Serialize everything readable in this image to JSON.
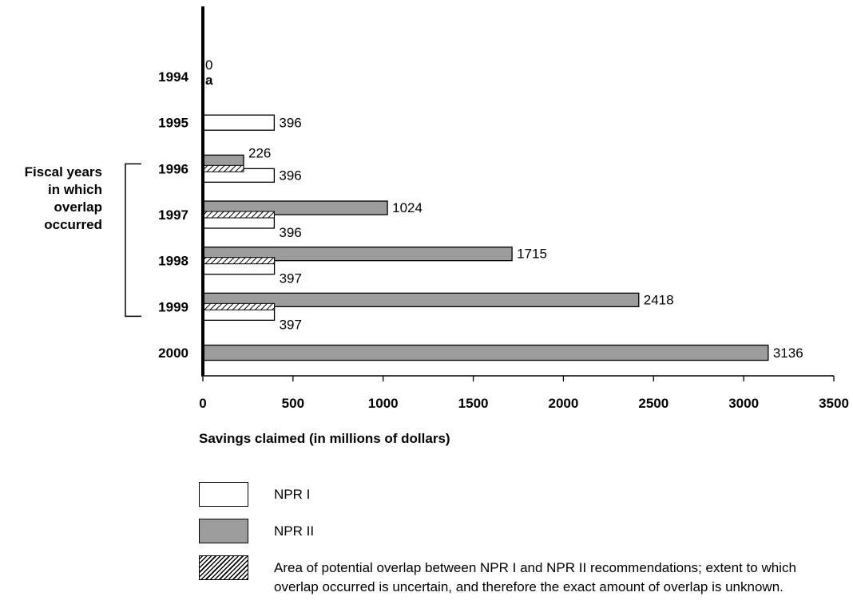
{
  "chart_data": {
    "type": "bar",
    "orientation": "horizontal",
    "categories": [
      "1994",
      "1995",
      "1996",
      "1997",
      "1998",
      "1999",
      "2000"
    ],
    "series": [
      {
        "name": "NPR I",
        "values": [
          0,
          396,
          396,
          396,
          397,
          397,
          null
        ],
        "color": "#ffffff"
      },
      {
        "name": "NPR II",
        "values": [
          null,
          null,
          226,
          1024,
          1715,
          2418,
          3136
        ],
        "color": "#9c9c9c"
      }
    ],
    "overlap_values": [
      null,
      null,
      226,
      396,
      397,
      397,
      null
    ],
    "value_labels": {
      "1994": [
        "0",
        "a"
      ],
      "1995": [
        "396"
      ],
      "1996": [
        "226",
        "396"
      ],
      "1997": [
        "1024",
        "396"
      ],
      "1998": [
        "1715",
        "397"
      ],
      "1999": [
        "2418",
        "397"
      ],
      "2000": [
        "3136"
      ]
    },
    "xlim": [
      0,
      3500
    ],
    "xticks": [
      "0",
      "500",
      "1000",
      "1500",
      "2000",
      "2500",
      "3000",
      "3500"
    ],
    "xlabel": "Savings claimed (in millions of dollars)",
    "bracket_label": "Fiscal years\nin which\noverlap\noccurred",
    "bracket_range": [
      "1996",
      "1999"
    ]
  },
  "legend": {
    "npr1": "NPR I",
    "npr2": "NPR II",
    "overlap": "Area of potential overlap between NPR I and NPR II recommendations; extent to which overlap occurred is uncertain, and therefore the exact amount of overlap is unknown."
  },
  "colors": {
    "npr1": "#ffffff",
    "npr2": "#9c9c9c",
    "axis": "#000000"
  }
}
